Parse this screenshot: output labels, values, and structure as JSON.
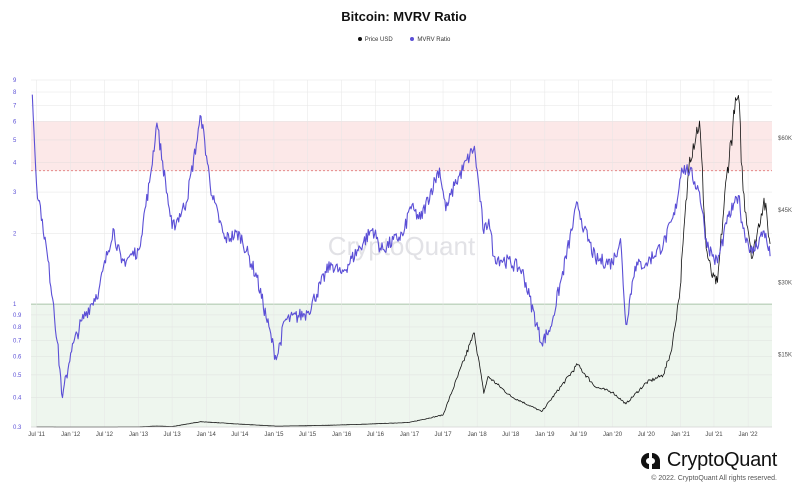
{
  "chart_data": {
    "type": "line",
    "title": "Bitcoin: MVRV Ratio",
    "watermark": "CryptoQuant",
    "legend_position": "top-center",
    "grid": true,
    "y_scale": "log",
    "left_axis": {
      "ylim": [
        0.3,
        9
      ],
      "ticks": [
        0.3,
        0.4,
        0.5,
        0.6,
        0.7,
        0.8,
        0.9,
        1,
        2,
        3,
        4,
        5,
        6,
        7,
        8,
        9
      ],
      "tick_labels": [
        "0.3",
        "0.4",
        "0.5",
        "0.6",
        "0.7",
        "0.8",
        "0.9",
        "1",
        "2",
        "3",
        "4",
        "5",
        "6",
        "7",
        "8",
        "9"
      ]
    },
    "right_axis": {
      "ylim": [
        0,
        72000
      ],
      "ticks": [
        15000,
        30000,
        45000,
        60000
      ],
      "tick_labels": [
        "$15K",
        "$30K",
        "$45K",
        "$60K"
      ]
    },
    "x_ticks": [
      "2011-07-01",
      "2012-01-01",
      "2012-07-01",
      "2013-01-01",
      "2013-07-01",
      "2014-01-01",
      "2014-07-01",
      "2015-01-01",
      "2015-07-01",
      "2016-01-01",
      "2016-07-01",
      "2017-01-01",
      "2017-07-01",
      "2018-01-01",
      "2018-07-01",
      "2019-01-01",
      "2019-07-01",
      "2020-01-01",
      "2020-07-01",
      "2021-01-01",
      "2021-07-01",
      "2022-01-01"
    ],
    "x_tick_labels": [
      "Jul '11",
      "Jan '12",
      "Jul '12",
      "Jan '13",
      "Jul '13",
      "Jan '14",
      "Jul '14",
      "Jan '15",
      "Jul '15",
      "Jan '16",
      "Jul '16",
      "Jan '17",
      "Jul '17",
      "Jan '18",
      "Jul '18",
      "Jan '19",
      "Jul '19",
      "Jan '20",
      "Jul '20",
      "Jan '21",
      "Jul '21",
      "Jan '22"
    ],
    "bands": [
      {
        "from": 1,
        "to": 0.3,
        "color": "#eef6ee"
      },
      {
        "from": 3.7,
        "to": 6,
        "color": "#fce8e8"
      }
    ],
    "series": [
      {
        "name": "Price USD",
        "axis": "right",
        "color": "#111111",
        "points": [
          [
            "2011-07-01",
            15
          ],
          [
            "2012-01-01",
            6
          ],
          [
            "2012-07-01",
            9
          ],
          [
            "2013-01-01",
            13
          ],
          [
            "2013-04-10",
            200
          ],
          [
            "2013-07-01",
            90
          ],
          [
            "2013-12-04",
            1100
          ],
          [
            "2014-07-01",
            600
          ],
          [
            "2015-01-14",
            180
          ],
          [
            "2015-07-01",
            260
          ],
          [
            "2016-01-01",
            430
          ],
          [
            "2016-07-01",
            660
          ],
          [
            "2017-01-01",
            950
          ],
          [
            "2017-07-01",
            2500
          ],
          [
            "2017-12-17",
            19500
          ],
          [
            "2018-02-06",
            7000
          ],
          [
            "2018-03-01",
            10500
          ],
          [
            "2018-07-01",
            6400
          ],
          [
            "2018-12-15",
            3200
          ],
          [
            "2019-06-26",
            12900
          ],
          [
            "2019-10-01",
            8300
          ],
          [
            "2020-01-01",
            7200
          ],
          [
            "2020-03-13",
            4800
          ],
          [
            "2020-07-01",
            9200
          ],
          [
            "2020-10-01",
            10800
          ],
          [
            "2020-11-15",
            16000
          ],
          [
            "2020-12-31",
            29000
          ],
          [
            "2021-01-15",
            38000
          ],
          [
            "2021-02-20",
            56000
          ],
          [
            "2021-04-14",
            63500
          ],
          [
            "2021-05-20",
            37000
          ],
          [
            "2021-06-22",
            31000
          ],
          [
            "2021-07-20",
            30000
          ],
          [
            "2021-09-07",
            52000
          ],
          [
            "2021-10-20",
            65000
          ],
          [
            "2021-11-10",
            68800
          ],
          [
            "2021-12-05",
            49000
          ],
          [
            "2022-01-24",
            35000
          ],
          [
            "2022-03-28",
            47500
          ],
          [
            "2022-04-30",
            38000
          ]
        ]
      },
      {
        "name": "MVRV Ratio",
        "axis": "left",
        "color": "#5b4fd6",
        "points": [
          [
            "2011-06-08",
            7.8
          ],
          [
            "2011-07-01",
            3.2
          ],
          [
            "2011-08-01",
            2.3
          ],
          [
            "2011-10-01",
            1.0
          ],
          [
            "2011-11-18",
            0.4
          ],
          [
            "2012-01-01",
            0.62
          ],
          [
            "2012-03-01",
            0.85
          ],
          [
            "2012-06-01",
            1.15
          ],
          [
            "2012-08-17",
            2.1
          ],
          [
            "2012-10-01",
            1.5
          ],
          [
            "2013-01-01",
            1.7
          ],
          [
            "2013-03-01",
            3.3
          ],
          [
            "2013-04-10",
            5.9
          ],
          [
            "2013-07-01",
            2.1
          ],
          [
            "2013-09-15",
            2.7
          ],
          [
            "2013-12-04",
            6.3
          ],
          [
            "2014-02-01",
            2.9
          ],
          [
            "2014-04-10",
            1.9
          ],
          [
            "2014-07-01",
            2.0
          ],
          [
            "2014-10-01",
            1.3
          ],
          [
            "2015-01-14",
            0.58
          ],
          [
            "2015-03-01",
            0.85
          ],
          [
            "2015-07-01",
            0.92
          ],
          [
            "2015-11-04",
            1.5
          ],
          [
            "2016-01-01",
            1.35
          ],
          [
            "2016-06-17",
            2.1
          ],
          [
            "2016-08-01",
            1.7
          ],
          [
            "2016-12-01",
            2.0
          ],
          [
            "2017-01-05",
            2.6
          ],
          [
            "2017-03-01",
            2.3
          ],
          [
            "2017-06-12",
            3.8
          ],
          [
            "2017-07-16",
            2.5
          ],
          [
            "2017-09-01",
            3.2
          ],
          [
            "2017-12-17",
            4.7
          ],
          [
            "2018-02-06",
            2.0
          ],
          [
            "2018-03-05",
            2.3
          ],
          [
            "2018-04-01",
            1.6
          ],
          [
            "2018-07-01",
            1.5
          ],
          [
            "2018-09-01",
            1.4
          ],
          [
            "2018-12-15",
            0.68
          ],
          [
            "2019-02-01",
            0.8
          ],
          [
            "2019-04-02",
            1.3
          ],
          [
            "2019-06-26",
            2.7
          ],
          [
            "2019-08-01",
            2.1
          ],
          [
            "2019-10-01",
            1.55
          ],
          [
            "2020-01-01",
            1.5
          ],
          [
            "2020-02-13",
            1.9
          ],
          [
            "2020-03-13",
            0.82
          ],
          [
            "2020-05-01",
            1.45
          ],
          [
            "2020-07-01",
            1.5
          ],
          [
            "2020-10-01",
            1.8
          ],
          [
            "2020-12-01",
            2.4
          ],
          [
            "2021-01-08",
            3.8
          ],
          [
            "2021-02-21",
            3.7
          ],
          [
            "2021-04-14",
            3.0
          ],
          [
            "2021-05-20",
            1.9
          ],
          [
            "2021-06-22",
            1.6
          ],
          [
            "2021-07-20",
            1.5
          ],
          [
            "2021-09-07",
            2.2
          ],
          [
            "2021-10-20",
            2.7
          ],
          [
            "2021-11-10",
            2.9
          ],
          [
            "2021-12-05",
            2.1
          ],
          [
            "2022-01-24",
            1.65
          ],
          [
            "2022-03-28",
            2.05
          ],
          [
            "2022-04-30",
            1.6
          ]
        ]
      }
    ]
  },
  "footer": {
    "brand": "CryptoQuant",
    "copyright": "© 2022. CryptoQuant All rights reserved."
  }
}
